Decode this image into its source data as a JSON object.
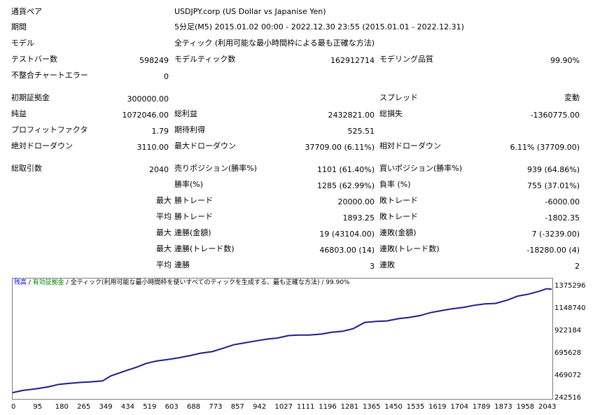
{
  "report": {
    "symbol_label": "通貨ペア",
    "symbol_value": "USDJPY.corp (US Dollar vs Japanise Yen)",
    "period_label": "期間",
    "period_value": "5分足(M5) 2015.01.02 00:00 - 2022.12.30 23:55 (2015.01.01 - 2022.12.31)",
    "model_label": "モデル",
    "model_value": "全ティック (利用可能な最小時間枠による最も正確な方法)",
    "bars_label": "テストバー数",
    "bars_value": "598249",
    "ticks_label": "モデルティック数",
    "ticks_value": "162912714",
    "quality_label": "モデリング品質",
    "quality_value": "99.90%",
    "mismatch_label": "不整合チャートエラー",
    "mismatch_value": "0",
    "deposit_label": "初期証拠金",
    "deposit_value": "300000.00",
    "spread_label": "スプレッド",
    "spread_value": "変動",
    "net_label": "純益",
    "net_value": "1072046.00",
    "gross_profit_label": "総利益",
    "gross_profit_value": "2432821.00",
    "gross_loss_label": "総損失",
    "gross_loss_value": "-1360775.00",
    "pf_label": "プロフィットファクタ",
    "pf_value": "1.79",
    "expected_label": "期待利得",
    "expected_value": "525.51",
    "abs_dd_label": "絶対ドローダウン",
    "abs_dd_value": "3110.00",
    "max_dd_label": "最大ドローダウン",
    "max_dd_value": "37709.00 (6.11%)",
    "rel_dd_label": "相対ドローダウン",
    "rel_dd_value": "6.11% (37709.00)",
    "trades_label": "総取引数",
    "trades_value": "2040",
    "short_label": "売りポジション(勝率%)",
    "short_value": "1101 (61.40%)",
    "long_label": "買いポジション(勝率%)",
    "long_value": "939 (64.86%)",
    "win_rate_label": "勝率(%)",
    "win_rate_value": "1285 (62.99%)",
    "loss_rate_label": "負率 (%)",
    "loss_rate_value": "755 (37.01%)",
    "max_word": "最大",
    "avg_word": "平均",
    "largest_win_label": "勝トレード",
    "largest_win_value": "20000.00",
    "largest_loss_label": "敗トレード",
    "largest_loss_value": "-6000.00",
    "avg_win_label": "勝トレード",
    "avg_win_value": "1893.25",
    "avg_loss_label": "敗トレード",
    "avg_loss_value": "-1802.35",
    "max_cons_win_label": "連勝(金額)",
    "max_cons_win_value": "19 (43104.00)",
    "max_cons_loss_label": "連敗(金額)",
    "max_cons_loss_value": "7 (-3239.00)",
    "max_cons_wincount_label": "連勝(トレード数)",
    "max_cons_wincount_value": "46803.00 (14)",
    "max_cons_losscount_label": "連敗(トレード数)",
    "max_cons_losscount_value": "-18280.00 (4)",
    "avg_cons_win_label": "連勝",
    "avg_cons_win_value": "3",
    "avg_cons_loss_label": "連敗",
    "avg_cons_loss_value": "2"
  },
  "chart_header": {
    "balance": "残高",
    "sep1": " / ",
    "equity": "有効証拠金",
    "sep2": " / ",
    "model_desc": "全ティック(利用可能な最小時間枠を使いすべてのティックを生成する、最も正確な方法)",
    "sep3": " / ",
    "quality": "99.90%"
  },
  "colors": {
    "balance_line": "#1c1c8c",
    "balance_label": "#0000ff",
    "equity_label": "#008000"
  },
  "chart_data": {
    "type": "line",
    "title": "",
    "xlabel": "",
    "ylabel": "",
    "x_ticks": [
      "0",
      "95",
      "180",
      "265",
      "349",
      "434",
      "519",
      "603",
      "688",
      "773",
      "857",
      "942",
      "1027",
      "1111",
      "1196",
      "1281",
      "1365",
      "1450",
      "1535",
      "1619",
      "1704",
      "1789",
      "1873",
      "1958",
      "2043"
    ],
    "y_ticks": [
      "1375296",
      "1148740",
      "922184",
      "695628",
      "469072",
      "242516"
    ],
    "xlim": [
      0,
      2090
    ],
    "ylim": [
      242516,
      1470000
    ],
    "series": [
      {
        "values": [
          [
            0,
            300000
          ],
          [
            40,
            322000
          ],
          [
            95,
            340000
          ],
          [
            140,
            360000
          ],
          [
            180,
            385000
          ],
          [
            220,
            395000
          ],
          [
            265,
            405000
          ],
          [
            300,
            410000
          ],
          [
            349,
            420000
          ],
          [
            380,
            470000
          ],
          [
            434,
            520000
          ],
          [
            480,
            560000
          ],
          [
            519,
            600000
          ],
          [
            560,
            625000
          ],
          [
            603,
            640000
          ],
          [
            640,
            655000
          ],
          [
            688,
            680000
          ],
          [
            730,
            705000
          ],
          [
            773,
            720000
          ],
          [
            810,
            750000
          ],
          [
            857,
            790000
          ],
          [
            900,
            810000
          ],
          [
            942,
            830000
          ],
          [
            990,
            850000
          ],
          [
            1027,
            860000
          ],
          [
            1070,
            885000
          ],
          [
            1111,
            890000
          ],
          [
            1150,
            890000
          ],
          [
            1196,
            900000
          ],
          [
            1240,
            920000
          ],
          [
            1281,
            930000
          ],
          [
            1320,
            955000
          ],
          [
            1365,
            1020000
          ],
          [
            1410,
            1030000
          ],
          [
            1450,
            1035000
          ],
          [
            1500,
            1060000
          ],
          [
            1535,
            1070000
          ],
          [
            1580,
            1090000
          ],
          [
            1619,
            1120000
          ],
          [
            1660,
            1140000
          ],
          [
            1704,
            1160000
          ],
          [
            1750,
            1175000
          ],
          [
            1789,
            1195000
          ],
          [
            1830,
            1210000
          ],
          [
            1873,
            1215000
          ],
          [
            1920,
            1250000
          ],
          [
            1958,
            1290000
          ],
          [
            2000,
            1310000
          ],
          [
            2043,
            1340000
          ],
          [
            2070,
            1365000
          ],
          [
            2090,
            1360000
          ]
        ]
      }
    ],
    "grid": false,
    "legend": "none"
  }
}
